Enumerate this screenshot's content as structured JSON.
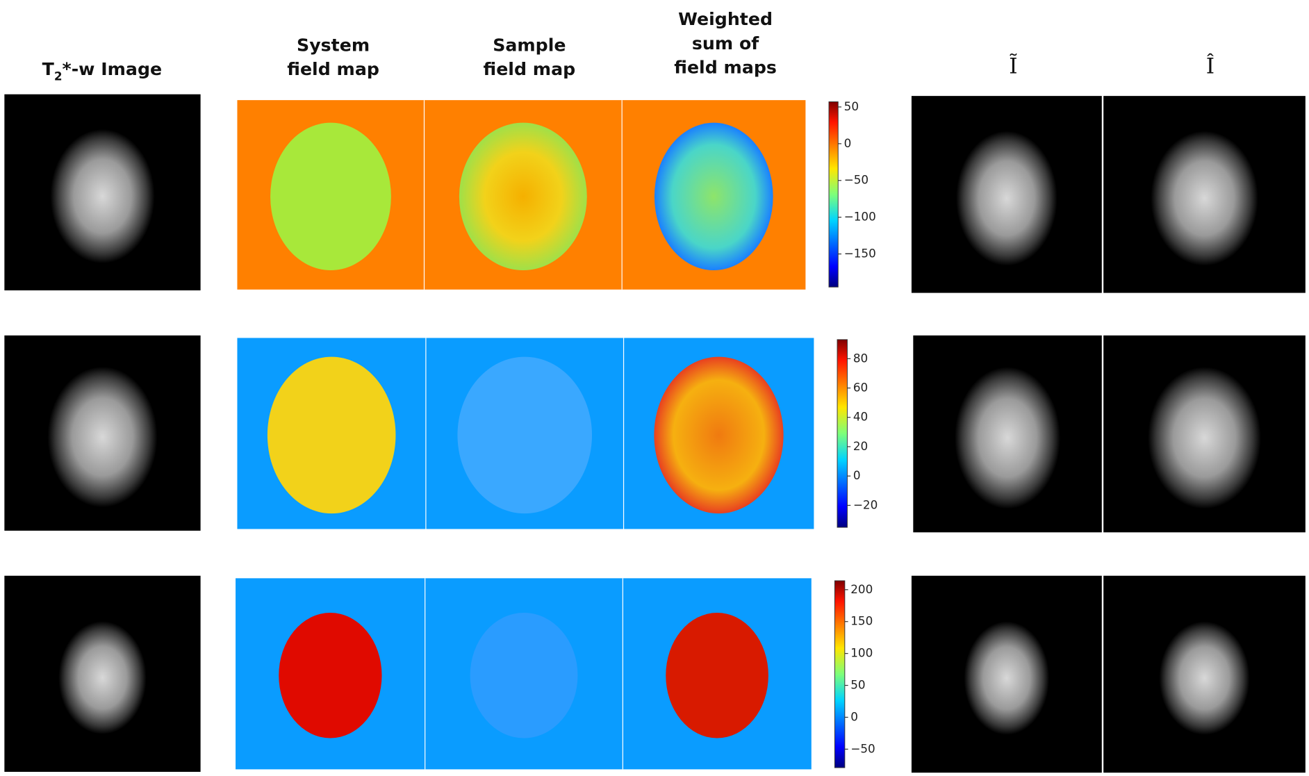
{
  "headers": {
    "t2_image": {
      "base": "T",
      "subscript": "2",
      "rest": "*-w Image"
    },
    "system_field_map": [
      "System",
      "field map"
    ],
    "sample_field_map": [
      "Sample",
      "field map"
    ],
    "weighted_sum": [
      "Weighted",
      "sum of",
      "field maps"
    ],
    "i_tilde": "Ĩ",
    "i_hat": "Î"
  },
  "rows": [
    {
      "colorbar": {
        "lim": [
          -195,
          57
        ],
        "ticks": [
          50,
          0,
          {
            "value": -50,
            "label": "−50"
          },
          {
            "value": -100,
            "label": "−100"
          },
          {
            "value": -150,
            "label": "−150"
          }
        ]
      }
    },
    {
      "colorbar": {
        "lim": [
          -35,
          93
        ],
        "ticks": [
          80,
          60,
          40,
          20,
          0,
          {
            "value": -20,
            "label": "−20"
          }
        ]
      }
    },
    {
      "colorbar": {
        "lim": [
          -79,
          214
        ],
        "ticks": [
          200,
          150,
          100,
          50,
          0,
          {
            "value": -50,
            "label": "−50"
          }
        ]
      }
    }
  ]
}
